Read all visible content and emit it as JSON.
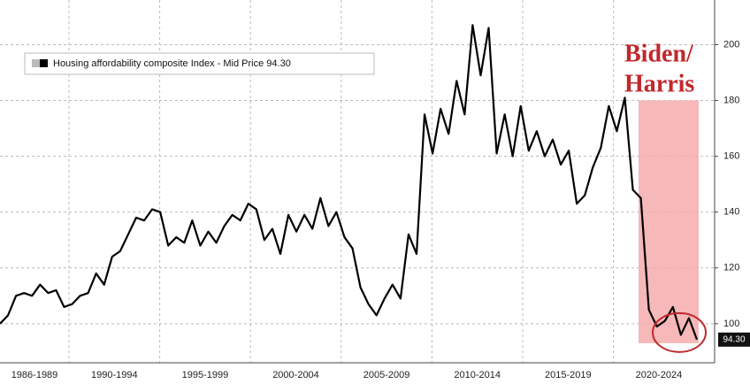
{
  "chart_data": {
    "type": "line",
    "legend_label": "Housing affordability composite Index - Mid Price 94.30",
    "annotation": [
      "Biden/",
      "Harris"
    ],
    "end_label": "94.30",
    "xtick_labels": [
      "1986-1989",
      "1990-1994",
      "1995-1999",
      "2000-2004",
      "2005-2009",
      "2010-2014",
      "2015-2019",
      "2020-2024"
    ],
    "series": [
      {
        "name": "Housing affordability composite Index - Mid Price",
        "color": "#000000",
        "values": [
          100,
          103,
          110,
          111,
          110,
          114,
          111,
          112,
          106,
          107,
          110,
          111,
          118,
          114,
          124,
          126,
          132,
          138,
          137,
          141,
          140,
          128,
          131,
          129,
          137,
          128,
          133,
          129,
          135,
          139,
          137,
          143,
          141,
          130,
          134,
          125,
          139,
          133,
          139,
          134,
          145,
          135,
          140,
          131,
          127,
          113,
          107,
          103,
          109,
          114,
          109,
          132,
          125,
          175,
          161,
          177,
          168,
          187,
          175,
          207,
          189,
          206,
          161,
          175,
          160,
          178,
          162,
          169,
          160,
          166,
          157,
          162,
          143,
          146,
          156,
          163,
          178,
          169,
          181,
          148,
          145,
          105,
          99,
          101,
          106,
          96,
          102,
          94.3
        ]
      }
    ],
    "shade_range": [
      93,
      180
    ],
    "shade_color": "#f4a6a6",
    "annotation_color": "#c0282d",
    "ylim": [
      86,
      216
    ],
    "yticks": [
      100,
      120,
      140,
      160,
      180,
      200
    ],
    "grid": true
  }
}
